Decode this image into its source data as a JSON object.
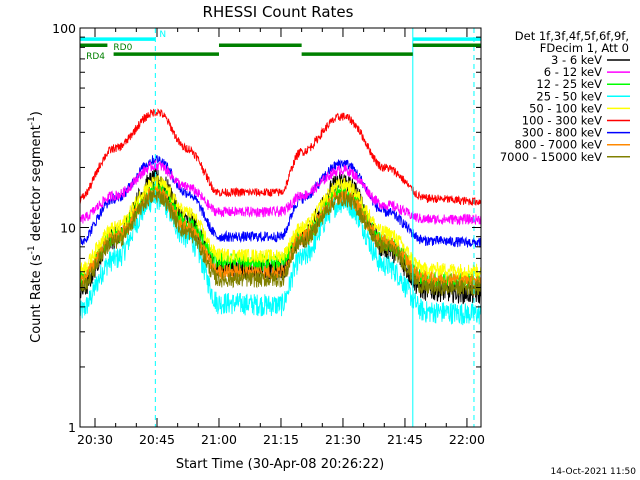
{
  "chart_data": {
    "type": "line",
    "title": "RHESSI Count Rates",
    "xlabel": "Start Time (30-Apr-08 20:26:22)",
    "ylabel_base": "Count Rate (s",
    "ylabel_exp1": "-1",
    "ylabel_mid": " detector segment",
    "ylabel_exp2": "-1",
    "ylabel_end": ")",
    "x_unit": "minutes after 20:00",
    "xlim": [
      26.37,
      123.4
    ],
    "ylim": [
      1,
      100
    ],
    "y_scale": "log",
    "x_ticks": [
      {
        "value": 30,
        "label": "20:30"
      },
      {
        "value": 45,
        "label": "20:45"
      },
      {
        "value": 60,
        "label": "21:00"
      },
      {
        "value": 75,
        "label": "21:15"
      },
      {
        "value": 90,
        "label": "21:30"
      },
      {
        "value": 105,
        "label": "21:45"
      },
      {
        "value": 120,
        "label": "22:00"
      }
    ],
    "y_ticks": [
      {
        "value": 1,
        "label": "1"
      },
      {
        "value": 10,
        "label": "10"
      },
      {
        "value": 100,
        "label": "100"
      }
    ],
    "legend_header": [
      "Det 1f,3f,4f,5f,6f,9f,",
      "FDecim 1, Att 0"
    ],
    "legend_placement": "right",
    "series": [
      {
        "name": "3 - 6 keV",
        "color": "#000000",
        "x": [
          26.37,
          35,
          45,
          52,
          60,
          75,
          80,
          90,
          100,
          110,
          123.4
        ],
        "values": [
          4.8,
          9,
          17.5,
          11,
          6.3,
          6.2,
          9,
          17,
          8,
          4.9,
          4.7
        ]
      },
      {
        "name": "6 - 12 keV",
        "color": "#ff00ff",
        "x": [
          26.37,
          35,
          45,
          52,
          60,
          75,
          80,
          90,
          100,
          110,
          123.4
        ],
        "values": [
          11,
          14.5,
          20.5,
          16,
          12,
          12,
          14.5,
          19.5,
          13,
          11,
          11
        ]
      },
      {
        "name": "12 - 25 keV",
        "color": "#00ff00",
        "x": [
          26.37,
          35,
          45,
          52,
          60,
          75,
          80,
          90,
          100,
          110,
          123.4
        ],
        "values": [
          5.5,
          9,
          15.5,
          10.5,
          6.8,
          6.7,
          9,
          15,
          8.5,
          5.5,
          5.4
        ]
      },
      {
        "name": "25 - 50 keV",
        "color": "#00ffff",
        "x": [
          26.37,
          35,
          45,
          52,
          60,
          75,
          80,
          90,
          100,
          110,
          123.4
        ],
        "values": [
          3.8,
          7,
          14,
          9,
          4.2,
          4.1,
          7,
          13.5,
          6.5,
          3.8,
          3.7
        ]
      },
      {
        "name": "50 - 100 keV",
        "color": "#ffff00",
        "x": [
          26.37,
          35,
          45,
          52,
          60,
          75,
          80,
          90,
          100,
          110,
          123.4
        ],
        "values": [
          6.2,
          10,
          17,
          12,
          7.3,
          7.2,
          10,
          16.5,
          9.5,
          6.2,
          6.1
        ]
      },
      {
        "name": "100 - 300 keV",
        "color": "#ff0000",
        "x": [
          26.37,
          35,
          45,
          52,
          60,
          75,
          80,
          90,
          100,
          110,
          123.4
        ],
        "values": [
          14,
          25,
          38,
          25,
          15,
          15,
          24,
          36,
          20,
          14,
          13.5
        ]
      },
      {
        "name": "300 - 800 keV",
        "color": "#0000ff",
        "x": [
          26.37,
          35,
          45,
          52,
          60,
          75,
          80,
          90,
          100,
          110,
          123.4
        ],
        "values": [
          8.5,
          14,
          22,
          15,
          9,
          9,
          14,
          21,
          12,
          8.6,
          8.4
        ]
      },
      {
        "name": "800 - 7000 keV",
        "color": "#ff8800",
        "x": [
          26.37,
          35,
          45,
          52,
          60,
          75,
          80,
          90,
          100,
          110,
          123.4
        ],
        "values": [
          5.5,
          9,
          15,
          10,
          6,
          6,
          9,
          14.5,
          8.5,
          5.6,
          5.5
        ]
      },
      {
        "name": "7000 - 15000 keV",
        "color": "#808000",
        "x": [
          26.37,
          35,
          45,
          52,
          60,
          75,
          80,
          90,
          100,
          110,
          123.4
        ],
        "values": [
          5,
          8.5,
          14.5,
          9.5,
          5.5,
          5.5,
          8.5,
          14,
          8,
          5,
          5
        ]
      }
    ],
    "vertical_markers": [
      {
        "x": 26.37,
        "style": "solid",
        "color": "#00ffff"
      },
      {
        "x": 44.6,
        "style": "dashed",
        "color": "#00ffff"
      },
      {
        "x": 106.9,
        "style": "solid",
        "color": "#00ffff"
      },
      {
        "x": 121.7,
        "style": "dashed",
        "color": "#00ffff"
      }
    ],
    "flag_bars": [
      {
        "label": "N",
        "color": "#00ffff",
        "level_value": 88,
        "segments": [
          [
            26.37,
            44.6
          ],
          [
            106.9,
            123.4
          ]
        ],
        "label_at": 44.6
      },
      {
        "label": "RD0",
        "color": "#008000",
        "level_value": 82,
        "segments": [
          [
            26.37,
            33
          ],
          [
            60,
            80
          ],
          [
            106.9,
            123.4
          ]
        ],
        "label_at": 33
      },
      {
        "label": "RD4",
        "color": "#008000",
        "level_value": 74,
        "segments": [
          [
            34.5,
            60
          ],
          [
            80,
            106.9
          ]
        ],
        "label_at": 26.4
      }
    ]
  },
  "footer_timestamp": "14-Oct-2021 11:50"
}
